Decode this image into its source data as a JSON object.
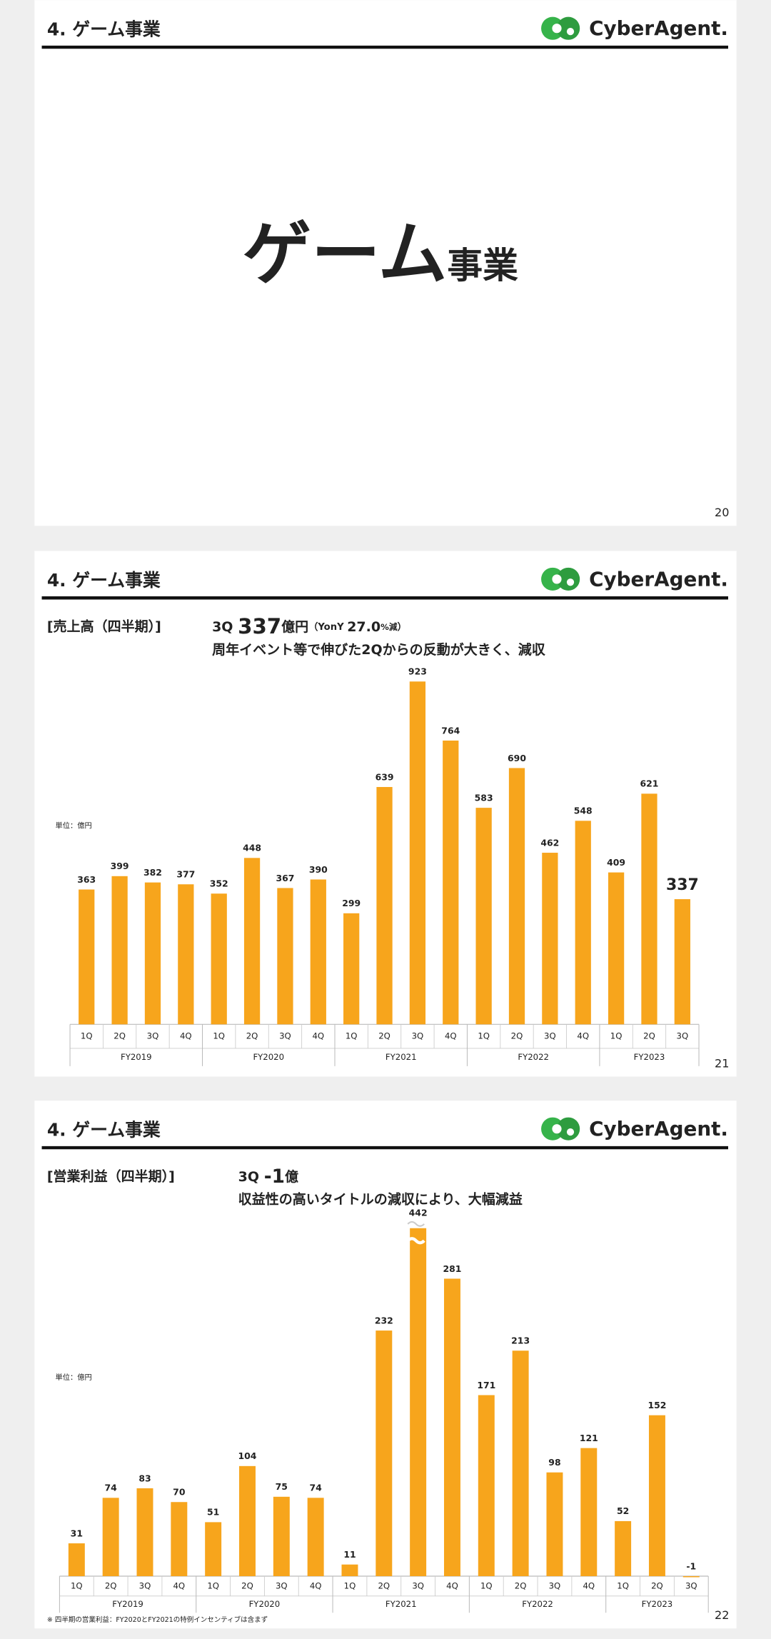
{
  "slides": [
    {
      "section": "4. ゲーム事業",
      "brand": "CyberAgent.",
      "title_main": "ゲーム",
      "title_sub": "事業",
      "page": 20
    },
    {
      "section": "4. ゲーム事業",
      "brand": "CyberAgent.",
      "subtitle": "[売上高（四半期）]",
      "headline": [
        "3Q ",
        "337",
        "億円",
        "（YonY ",
        "27.0",
        "%減",
        "）"
      ],
      "note": "周年イベント等で伸びた2Qからの反動が大きく、減収",
      "unit": "単位：億円",
      "page": 21
    },
    {
      "section": "4. ゲーム事業",
      "brand": "CyberAgent.",
      "subtitle": "[営業利益（四半期）]",
      "headline": [
        "3Q ",
        "-1",
        "億"
      ],
      "note": "収益性の高いタイトルの減収により、大幅減益",
      "unit": "単位：億円",
      "footnote": "※ 四半期の営業利益：FY2020とFY2021の特例インセンティブは含まず",
      "page": 22
    }
  ],
  "chart_data": [
    {
      "type": "bar",
      "color": "#f7a51c",
      "emphasize_last": true,
      "groups": [
        {
          "label": "FY2019",
          "quarters": [
            "1Q",
            "2Q",
            "3Q",
            "4Q"
          ]
        },
        {
          "label": "FY2020",
          "quarters": [
            "1Q",
            "2Q",
            "3Q",
            "4Q"
          ]
        },
        {
          "label": "FY2021",
          "quarters": [
            "1Q",
            "2Q",
            "3Q",
            "4Q"
          ]
        },
        {
          "label": "FY2022",
          "quarters": [
            "1Q",
            "2Q",
            "3Q",
            "4Q"
          ]
        },
        {
          "label": "FY2023",
          "quarters": [
            "1Q",
            "2Q",
            "3Q"
          ]
        }
      ],
      "values": [
        363,
        399,
        382,
        377,
        352,
        448,
        367,
        390,
        299,
        639,
        923,
        764,
        583,
        690,
        462,
        548,
        409,
        621,
        337
      ]
    },
    {
      "type": "bar",
      "color": "#f7a51c",
      "axis_break": true,
      "groups": [
        {
          "label": "FY2019",
          "quarters": [
            "1Q",
            "2Q",
            "3Q",
            "4Q"
          ]
        },
        {
          "label": "FY2020",
          "quarters": [
            "1Q",
            "2Q",
            "3Q",
            "4Q"
          ]
        },
        {
          "label": "FY2021",
          "quarters": [
            "1Q",
            "2Q",
            "3Q",
            "4Q"
          ]
        },
        {
          "label": "FY2022",
          "quarters": [
            "1Q",
            "2Q",
            "3Q",
            "4Q"
          ]
        },
        {
          "label": "FY2023",
          "quarters": [
            "1Q",
            "2Q",
            "3Q"
          ]
        }
      ],
      "values": [
        31,
        74,
        83,
        70,
        51,
        104,
        75,
        74,
        11,
        232,
        442,
        281,
        171,
        213,
        98,
        121,
        52,
        152,
        -1
      ]
    }
  ]
}
